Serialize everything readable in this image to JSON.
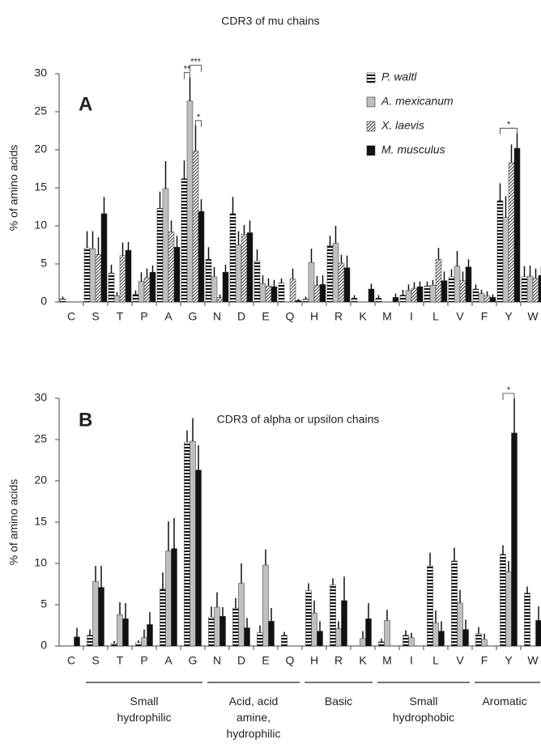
{
  "chart_data": [
    {
      "type": "bar",
      "panel": "A",
      "title": "CDR3 of mu chains",
      "ylabel": "% of amino acids",
      "categories": [
        "C",
        "S",
        "T",
        "P",
        "A",
        "G",
        "N",
        "D",
        "E",
        "Q",
        "H",
        "R",
        "K",
        "M",
        "I",
        "L",
        "V",
        "F",
        "Y",
        "W"
      ],
      "ylim": [
        0,
        30
      ],
      "yticks": [
        0,
        5,
        10,
        15,
        20,
        25,
        30
      ],
      "legend": "top-right",
      "series": [
        {
          "name": "P. waltl",
          "color": "#111111",
          "pattern": "horizontal-stripes",
          "values": [
            0.4,
            7.1,
            3.8,
            1.0,
            12.3,
            16.2,
            5.6,
            11.6,
            5.4,
            2.5,
            0.4,
            7.4,
            0.5,
            0.5,
            0.9,
            2.1,
            3.3,
            1.7,
            13.3,
            3.3
          ],
          "errors": [
            0.3,
            2.2,
            1.1,
            0.5,
            2.2,
            2.4,
            1.6,
            2.2,
            1.5,
            0.6,
            0.3,
            1.3,
            0.4,
            0.4,
            0.7,
            0.6,
            1.0,
            0.6,
            2.3,
            1.4
          ]
        },
        {
          "name": "A. mexicanum",
          "color": "#bfbfbf",
          "pattern": "solid",
          "values": [
            0,
            7.0,
            0.8,
            2.7,
            14.9,
            26.4,
            3.3,
            7.5,
            2.4,
            0,
            5.2,
            7.7,
            0,
            0,
            1.5,
            2.2,
            4.7,
            1.1,
            11.1,
            3.4
          ],
          "errors": [
            0,
            2.3,
            0.5,
            1.2,
            3.6,
            3.1,
            1.3,
            1.8,
            1.1,
            0,
            1.8,
            2.3,
            0,
            0,
            0.8,
            0.7,
            2.0,
            0.5,
            2.8,
            1.4
          ]
        },
        {
          "name": "X. laevis",
          "color": "#555555",
          "pattern": "diagonal-hatch",
          "values": [
            0,
            6.2,
            6.1,
            3.2,
            9.2,
            19.8,
            0.6,
            8.9,
            2.1,
            3.0,
            2.2,
            5.1,
            0,
            0,
            1.8,
            5.6,
            2.8,
            0.8,
            18.3,
            3.1
          ],
          "errors": [
            0,
            2.3,
            1.7,
            1.2,
            1.5,
            3.4,
            0.4,
            1.2,
            1.0,
            1.4,
            1.2,
            1.1,
            0,
            0,
            0.8,
            1.5,
            1.2,
            0.6,
            2.4,
            1.3
          ]
        },
        {
          "name": "M. musculus",
          "color": "#111111",
          "pattern": "solid",
          "values": [
            0,
            11.6,
            6.8,
            3.9,
            7.2,
            11.9,
            3.9,
            9.1,
            2.0,
            0.2,
            2.3,
            4.5,
            1.7,
            0.6,
            2.0,
            2.8,
            4.6,
            0.6,
            20.2,
            3.5
          ],
          "errors": [
            0,
            2.2,
            1.1,
            0.9,
            1.5,
            1.6,
            1.0,
            1.6,
            0.9,
            0.2,
            1.2,
            1.6,
            0.7,
            0.5,
            0.7,
            1.2,
            1.0,
            0.4,
            2.0,
            1.2
          ]
        }
      ],
      "annotations": [
        {
          "text": "**",
          "category": "G",
          "between": [
            "P. waltl",
            "A. mexicanum"
          ]
        },
        {
          "text": "***",
          "category": "G",
          "between": [
            "A. mexicanum",
            "M. musculus"
          ]
        },
        {
          "text": "*",
          "category": "G",
          "between": [
            "X. laevis",
            "M. musculus"
          ]
        },
        {
          "text": "*",
          "category": "Y"
        }
      ]
    },
    {
      "type": "bar",
      "panel": "B",
      "title": "CDR3 of alpha or upsilon chains",
      "ylabel": "% of amino acids",
      "categories": [
        "C",
        "S",
        "T",
        "P",
        "A",
        "G",
        "N",
        "D",
        "E",
        "Q",
        "H",
        "R",
        "K",
        "M",
        "I",
        "L",
        "V",
        "F",
        "Y",
        "W"
      ],
      "ylim": [
        0,
        30
      ],
      "yticks": [
        0,
        5,
        10,
        15,
        20,
        25,
        30
      ],
      "series": [
        {
          "color": "#111111",
          "pattern": "horizontal-stripes",
          "values": [
            0,
            1.3,
            0.3,
            0.4,
            6.9,
            24.7,
            3.5,
            4.6,
            1.6,
            1.3,
            6.7,
            7.4,
            0,
            0.5,
            1.3,
            9.7,
            10.3,
            1.5,
            11.1,
            6.4
          ],
          "errors": [
            0,
            0.7,
            0.3,
            0.3,
            2.0,
            1.4,
            1.3,
            1.2,
            0.9,
            0.4,
            0.9,
            0.8,
            0,
            0.4,
            0.6,
            1.6,
            1.6,
            0.8,
            1.1,
            0.8
          ]
        },
        {
          "color": "#bfbfbf",
          "pattern": "solid",
          "values": [
            0,
            7.8,
            3.8,
            1.0,
            11.5,
            24.8,
            4.7,
            7.6,
            9.8,
            0,
            4.0,
            2.1,
            0.9,
            3.1,
            1.0,
            2.8,
            5.2,
            0.8,
            9.0,
            0
          ],
          "errors": [
            0,
            1.9,
            1.5,
            1.0,
            3.6,
            2.8,
            1.8,
            2.4,
            1.9,
            0,
            1.5,
            0.9,
            0.9,
            1.3,
            0.6,
            1.5,
            1.6,
            0.7,
            1.3,
            0
          ]
        },
        {
          "color": "#111111",
          "pattern": "solid",
          "values": [
            1.1,
            7.1,
            3.3,
            2.6,
            11.8,
            21.3,
            3.6,
            2.2,
            3.0,
            0,
            1.8,
            5.5,
            3.3,
            0,
            0,
            1.8,
            2.0,
            0,
            25.8,
            3.1
          ],
          "errors": [
            1.1,
            2.6,
            1.9,
            1.5,
            3.7,
            3.0,
            1.1,
            1.2,
            1.6,
            0,
            1.2,
            2.9,
            1.9,
            0,
            0,
            1.2,
            1.2,
            0,
            4.2,
            1.7
          ]
        }
      ],
      "annotations": [
        {
          "text": "*",
          "category": "Y"
        }
      ],
      "groups": [
        {
          "label": "Small hydrophilic",
          "from": "S",
          "to": "G"
        },
        {
          "label": "Acid, acid amine, hydrophilic",
          "from": "N",
          "to": "Q"
        },
        {
          "label": "Basic",
          "from": "H",
          "to": "K"
        },
        {
          "label": "Small hydrophobic",
          "from": "M",
          "to": "V"
        },
        {
          "label": "Aromatic",
          "from": "F",
          "to": "W"
        }
      ]
    }
  ]
}
